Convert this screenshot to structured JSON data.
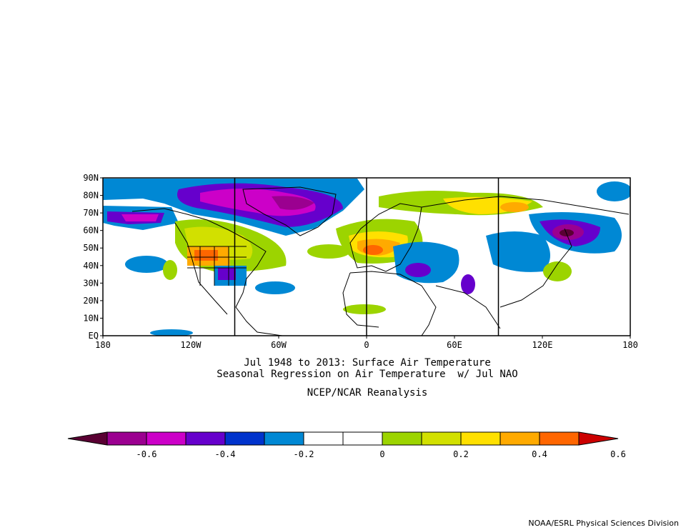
{
  "map": {
    "projection": "cylindrical-equidistant",
    "lon_range": [
      -180,
      180
    ],
    "lat_range": [
      0,
      90
    ],
    "meridian_lines_lon": [
      -90,
      0,
      90
    ],
    "lat_ticks": [
      "90N",
      "80N",
      "70N",
      "60N",
      "50N",
      "40N",
      "30N",
      "20N",
      "10N",
      "EQ"
    ],
    "lon_ticks": [
      "180",
      "120W",
      "60W",
      "0",
      "60E",
      "120E",
      "180"
    ]
  },
  "titles": {
    "line1": "Jul 1948 to 2013: Surface Air Temperature",
    "line2": "Seasonal Regression on Air Temperature  w/ Jul NAO",
    "line3": "NCEP/NCAR Reanalysis"
  },
  "colorbar": {
    "labels": [
      "-0.6",
      "-0.4",
      "-0.2",
      "0",
      "0.2",
      "0.4",
      "0.6"
    ],
    "colors": [
      "#5a0033",
      "#9b0090",
      "#cc00c8",
      "#6600cc",
      "#0033cc",
      "#0088d4",
      "#ffffff",
      "#ffffff",
      "#9cd400",
      "#d2e000",
      "#ffe000",
      "#ffaa00",
      "#ff6600",
      "#cc0000"
    ]
  },
  "credit": "NOAA/ESRL Physical Sciences Division"
}
